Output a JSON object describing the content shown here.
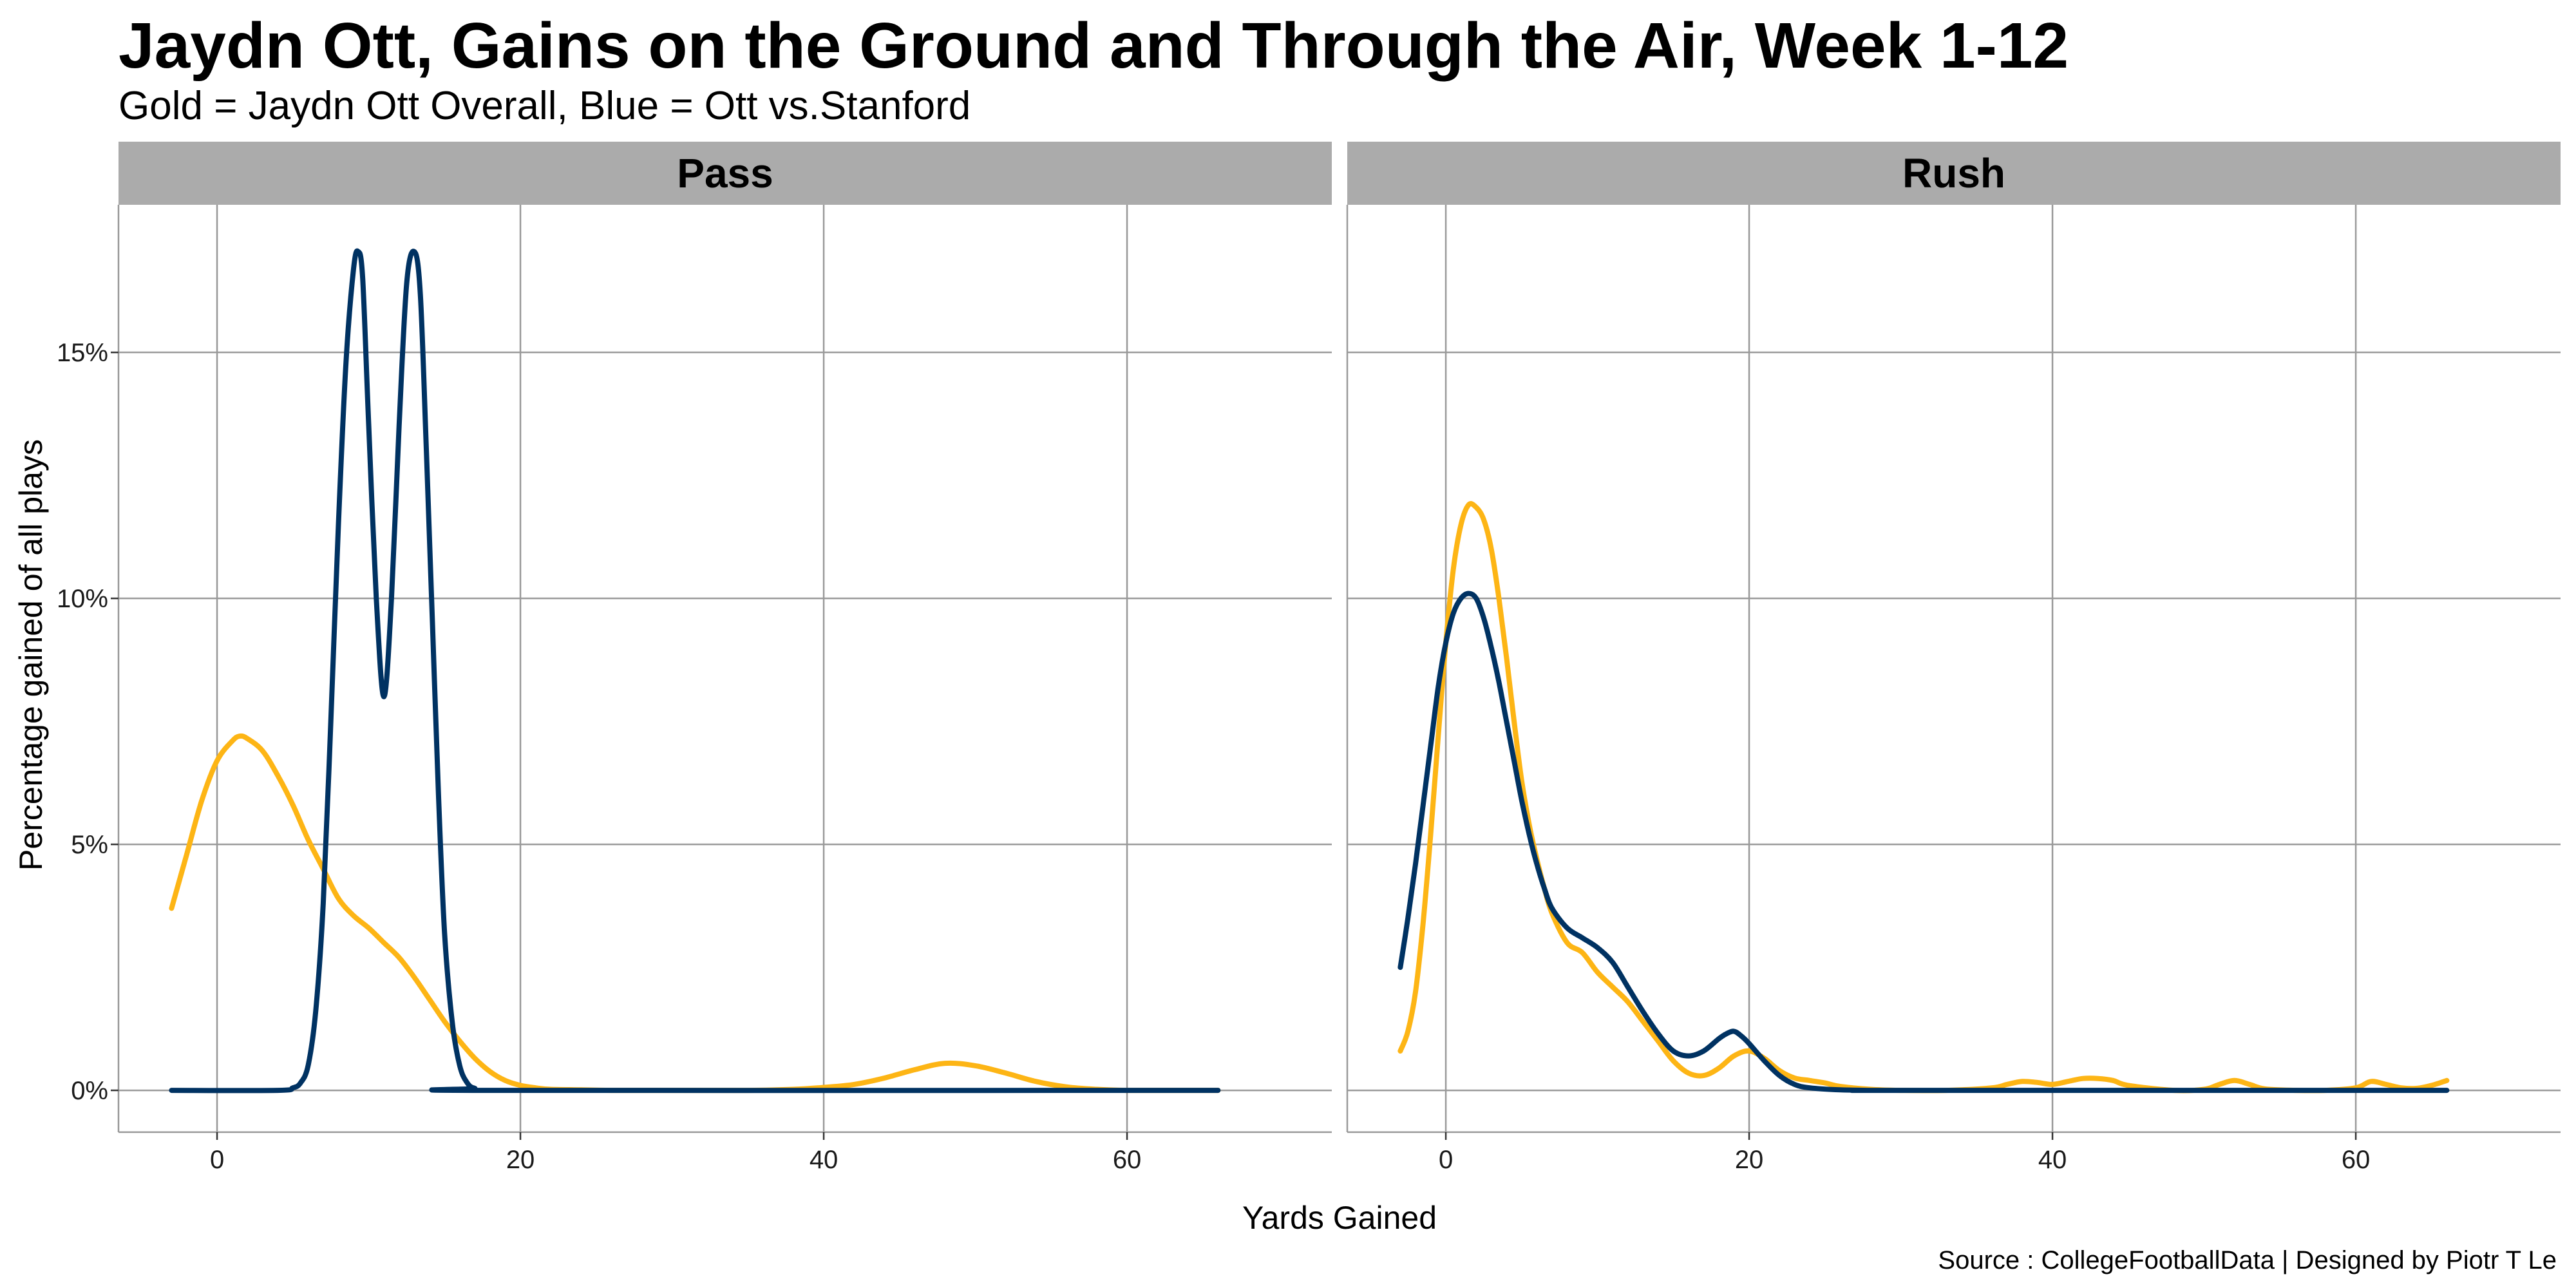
{
  "title": "Jaydn Ott, Gains on the Ground and Through the Air, Week 1-12",
  "subtitle": "Gold = Jaydn Ott Overall, Blue = Ott vs.Stanford",
  "caption": "Source : CollegeFootballData | Designed by Piotr T Le",
  "colors": {
    "overall": "#FDB515",
    "stanford": "#003262",
    "strip": "#ABABAB",
    "grid": "#999999"
  },
  "chart_data": {
    "type": "line",
    "xlabel": "Yards Gained",
    "ylabel": "Percentage gained of all plays",
    "xlim": [
      -6.5,
      73.5
    ],
    "ylim": [
      -0.85,
      18
    ],
    "x_ticks": [
      0,
      20,
      40,
      60
    ],
    "x_tick_labels": [
      "0",
      "20",
      "40",
      "60"
    ],
    "y_ticks": [
      0,
      5,
      10,
      15
    ],
    "y_tick_labels": [
      "0%",
      "5%",
      "10%",
      "15%"
    ],
    "legend": "none (described in subtitle)",
    "panels": [
      {
        "name": "Pass",
        "series": [
          {
            "name": "Jaydn Ott Overall",
            "color": "gold",
            "x": [
              -3,
              -2,
              -1,
              0,
              1,
              1.5,
              2,
              3,
              4,
              5,
              6,
              7,
              8,
              9,
              10,
              11,
              12,
              13,
              14,
              15,
              16,
              17,
              18,
              19,
              20,
              21,
              22,
              24,
              26,
              30,
              35,
              38,
              40,
              42,
              44,
              46,
              48,
              50,
              52,
              54,
              56,
              58,
              60,
              63,
              66
            ],
            "y": [
              3.7,
              4.8,
              5.9,
              6.7,
              7.1,
              7.2,
              7.15,
              6.9,
              6.4,
              5.8,
              5.1,
              4.5,
              3.9,
              3.55,
              3.3,
              3.0,
              2.7,
              2.3,
              1.85,
              1.4,
              1.0,
              0.65,
              0.38,
              0.2,
              0.1,
              0.05,
              0.02,
              0.01,
              0.0,
              0.0,
              0.0,
              0.02,
              0.06,
              0.12,
              0.25,
              0.42,
              0.55,
              0.5,
              0.35,
              0.18,
              0.07,
              0.02,
              0.0,
              0.0,
              0.0
            ]
          },
          {
            "name": "Ott vs.Stanford",
            "color": "blue",
            "x": [
              -3,
              4,
              5,
              5.5,
              6,
              6.5,
              7,
              7.5,
              8,
              8.5,
              9,
              9.3,
              9.6,
              10,
              10.5,
              11,
              11.5,
              12,
              12.5,
              13,
              13.4,
              13.8,
              14.2,
              14.6,
              15,
              15.5,
              16,
              16.5,
              17,
              18,
              66
            ],
            "y": [
              0,
              0,
              0.05,
              0.15,
              0.5,
              1.6,
              3.8,
              7.5,
              11.5,
              14.8,
              16.7,
              17.05,
              16.5,
              13.5,
              10.0,
              8.0,
              10.0,
              13.5,
              16.4,
              17.05,
              16.2,
              13.0,
              9.5,
              6.0,
              3.2,
              1.4,
              0.5,
              0.15,
              0.04,
              0,
              0
            ]
          }
        ]
      },
      {
        "name": "Rush",
        "series": [
          {
            "name": "Jaydn Ott Overall",
            "color": "gold",
            "x": [
              -3,
              -2.5,
              -2,
              -1.5,
              -1,
              -0.5,
              0,
              0.5,
              1,
              1.5,
              2,
              2.5,
              3,
              3.5,
              4,
              4.5,
              5,
              5.5,
              6,
              6.5,
              7,
              8,
              9,
              10,
              11,
              12,
              13,
              14,
              15,
              16,
              17,
              18,
              19,
              20,
              21,
              22,
              23,
              24,
              25,
              26,
              28,
              30,
              33,
              36,
              37,
              38,
              39,
              40,
              41,
              42,
              43,
              44,
              45,
              48,
              50,
              51,
              52,
              53,
              54,
              56,
              58,
              60,
              61,
              62,
              63,
              64,
              65,
              66
            ],
            "y": [
              0.8,
              1.2,
              2.0,
              3.4,
              5.2,
              7.2,
              9.1,
              10.6,
              11.5,
              11.9,
              11.85,
              11.6,
              11.0,
              10.0,
              8.8,
              7.5,
              6.3,
              5.4,
              4.7,
              4.1,
              3.6,
              3.0,
              2.8,
              2.4,
              2.1,
              1.8,
              1.4,
              1.0,
              0.6,
              0.35,
              0.3,
              0.45,
              0.7,
              0.8,
              0.65,
              0.4,
              0.25,
              0.2,
              0.15,
              0.08,
              0.02,
              0.0,
              0.0,
              0.05,
              0.12,
              0.18,
              0.16,
              0.12,
              0.18,
              0.24,
              0.24,
              0.2,
              0.1,
              0.0,
              0.02,
              0.12,
              0.2,
              0.12,
              0.03,
              0.0,
              0.0,
              0.05,
              0.18,
              0.12,
              0.05,
              0.04,
              0.1,
              0.2
            ]
          },
          {
            "name": "Ott vs.Stanford",
            "color": "blue",
            "x": [
              -3,
              -2.5,
              -2,
              -1.5,
              -1,
              -0.5,
              0,
              0.5,
              1,
              1.5,
              2,
              2.5,
              3,
              3.5,
              4,
              4.5,
              5,
              5.5,
              6,
              6.5,
              7,
              8,
              9,
              10,
              11,
              12,
              13,
              14,
              15,
              16,
              17,
              18,
              18.5,
              19,
              19.5,
              20,
              21,
              22,
              23,
              24,
              26,
              28,
              30,
              66
            ],
            "y": [
              2.5,
              3.5,
              4.6,
              5.8,
              7.0,
              8.2,
              9.1,
              9.7,
              10.0,
              10.1,
              10.0,
              9.6,
              9.0,
              8.3,
              7.5,
              6.7,
              5.9,
              5.2,
              4.6,
              4.1,
              3.7,
              3.3,
              3.1,
              2.9,
              2.6,
              2.1,
              1.6,
              1.15,
              0.8,
              0.7,
              0.8,
              1.05,
              1.15,
              1.2,
              1.1,
              0.95,
              0.6,
              0.3,
              0.12,
              0.05,
              0.01,
              0.0,
              0.0,
              0.0
            ]
          }
        ]
      }
    ]
  }
}
